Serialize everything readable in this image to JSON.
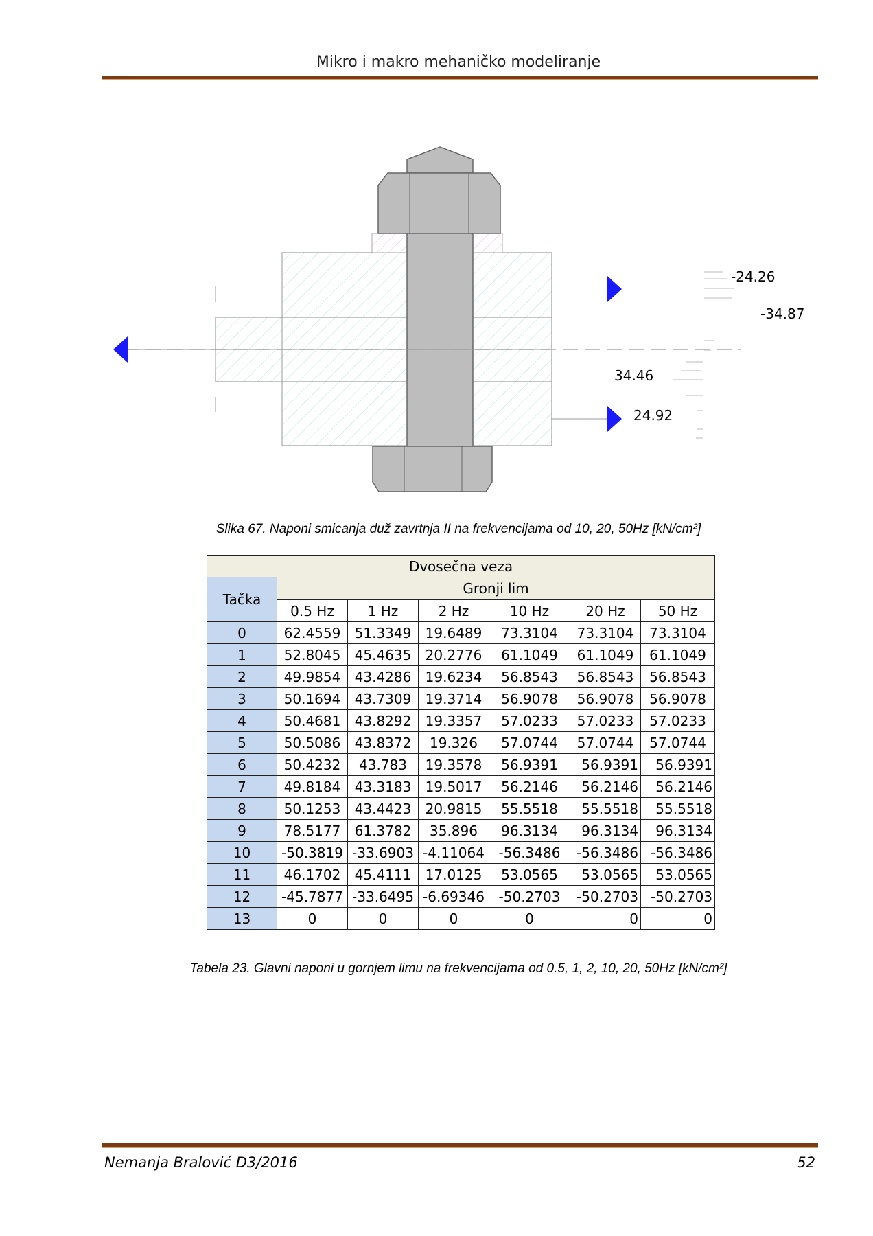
{
  "header": {
    "title": "Mikro i makro mehaničko modeliranje"
  },
  "figure": {
    "labels": {
      "top_right_1": "-24.26",
      "top_right_2": "-34.87",
      "bottom_1": "34.46",
      "bottom_2": "24.92"
    },
    "caption": "Slika 67. Naponi smicanja duž zavrtnja II na frekvencijama od 10, 20, 50Hz  [kN/cm²]"
  },
  "table": {
    "title": "Dvosečna veza",
    "group": "Gronji lim",
    "row_header": "Tačka",
    "columns": [
      "0.5 Hz",
      "1 Hz",
      "2 Hz",
      "10 Hz",
      "20 Hz",
      "50 Hz"
    ],
    "rows": [
      {
        "point": "0",
        "values": [
          "62.4559",
          "51.3349",
          "19.6489",
          "73.3104",
          "73.3104",
          "73.3104"
        ]
      },
      {
        "point": "1",
        "values": [
          "52.8045",
          "45.4635",
          "20.2776",
          "61.1049",
          "61.1049",
          "61.1049"
        ]
      },
      {
        "point": "2",
        "values": [
          "49.9854",
          "43.4286",
          "19.6234",
          "56.8543",
          "56.8543",
          "56.8543"
        ]
      },
      {
        "point": "3",
        "values": [
          "50.1694",
          "43.7309",
          "19.3714",
          "56.9078",
          "56.9078",
          "56.9078"
        ]
      },
      {
        "point": "4",
        "values": [
          "50.4681",
          "43.8292",
          "19.3357",
          "57.0233",
          "57.0233",
          "57.0233"
        ]
      },
      {
        "point": "5",
        "values": [
          "50.5086",
          "43.8372",
          "19.326",
          "57.0744",
          "57.0744",
          "57.0744"
        ]
      },
      {
        "point": "6",
        "values": [
          "50.4232",
          "43.783",
          "19.3578",
          "56.9391",
          "56.9391",
          "56.9391"
        ]
      },
      {
        "point": "7",
        "values": [
          "49.8184",
          "43.3183",
          "19.5017",
          "56.2146",
          "56.2146",
          "56.2146"
        ]
      },
      {
        "point": "8",
        "values": [
          "50.1253",
          "43.4423",
          "20.9815",
          "55.5518",
          "55.5518",
          "55.5518"
        ]
      },
      {
        "point": "9",
        "values": [
          "78.5177",
          "61.3782",
          "35.896",
          "96.3134",
          "96.3134",
          "96.3134"
        ]
      },
      {
        "point": "10",
        "values": [
          "-50.3819",
          "-33.6903",
          "-4.11064",
          "-56.3486",
          "-56.3486",
          "-56.3486"
        ]
      },
      {
        "point": "11",
        "values": [
          "46.1702",
          "45.4111",
          "17.0125",
          "53.0565",
          "53.0565",
          "53.0565"
        ]
      },
      {
        "point": "12",
        "values": [
          "-45.7877",
          "-33.6495",
          "-6.69346",
          "-50.2703",
          "-50.2703",
          "-50.2703"
        ]
      },
      {
        "point": "13",
        "values": [
          "0",
          "0",
          "0",
          "0",
          "0",
          "0"
        ]
      }
    ],
    "caption": "Tabela 23. Glavni naponi u gornjem limu na frekvencijama od 0.5, 1, 2, 10, 20, 50Hz  [kN/cm²]"
  },
  "footer": {
    "author": "Nemanja Bralović D3/2016",
    "page": "52"
  },
  "colors": {
    "rule": "#7b3b16",
    "table_header": "#efeee0",
    "point_column": "#c5d8ef",
    "arrow": "#1a1aff"
  }
}
